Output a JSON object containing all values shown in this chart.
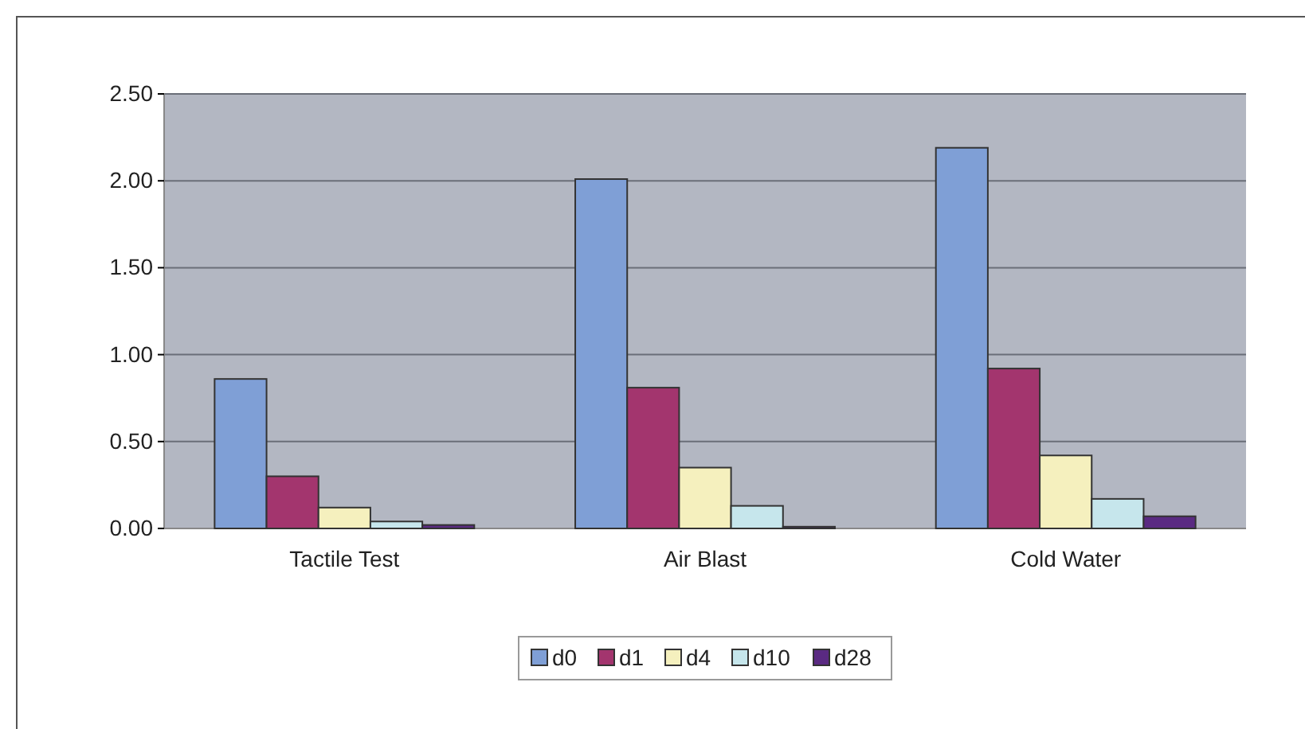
{
  "chart_data": {
    "type": "bar",
    "categories": [
      "Tactile Test",
      "Air Blast",
      "Cold Water"
    ],
    "series": [
      {
        "name": "d0",
        "color": "#7f9fd6",
        "values": [
          0.86,
          2.01,
          2.19
        ]
      },
      {
        "name": "d1",
        "color": "#a3356e",
        "values": [
          0.3,
          0.81,
          0.92
        ]
      },
      {
        "name": "d4",
        "color": "#f5f0be",
        "values": [
          0.12,
          0.35,
          0.42
        ]
      },
      {
        "name": "d10",
        "color": "#c6e6ec",
        "values": [
          0.04,
          0.13,
          0.17
        ]
      },
      {
        "name": "d28",
        "color": "#5a2a82",
        "values": [
          0.02,
          0.01,
          0.07
        ]
      }
    ],
    "ylim": [
      0,
      2.5
    ],
    "yticks": [
      {
        "value": 0,
        "label": "0.00"
      },
      {
        "value": 0.5,
        "label": "0.50"
      },
      {
        "value": 1,
        "label": "1.00"
      },
      {
        "value": 1.5,
        "label": "1.50"
      },
      {
        "value": 2,
        "label": "2.00"
      },
      {
        "value": 2.5,
        "label": "2.50"
      }
    ],
    "grid": "y",
    "legend": "bottom"
  }
}
